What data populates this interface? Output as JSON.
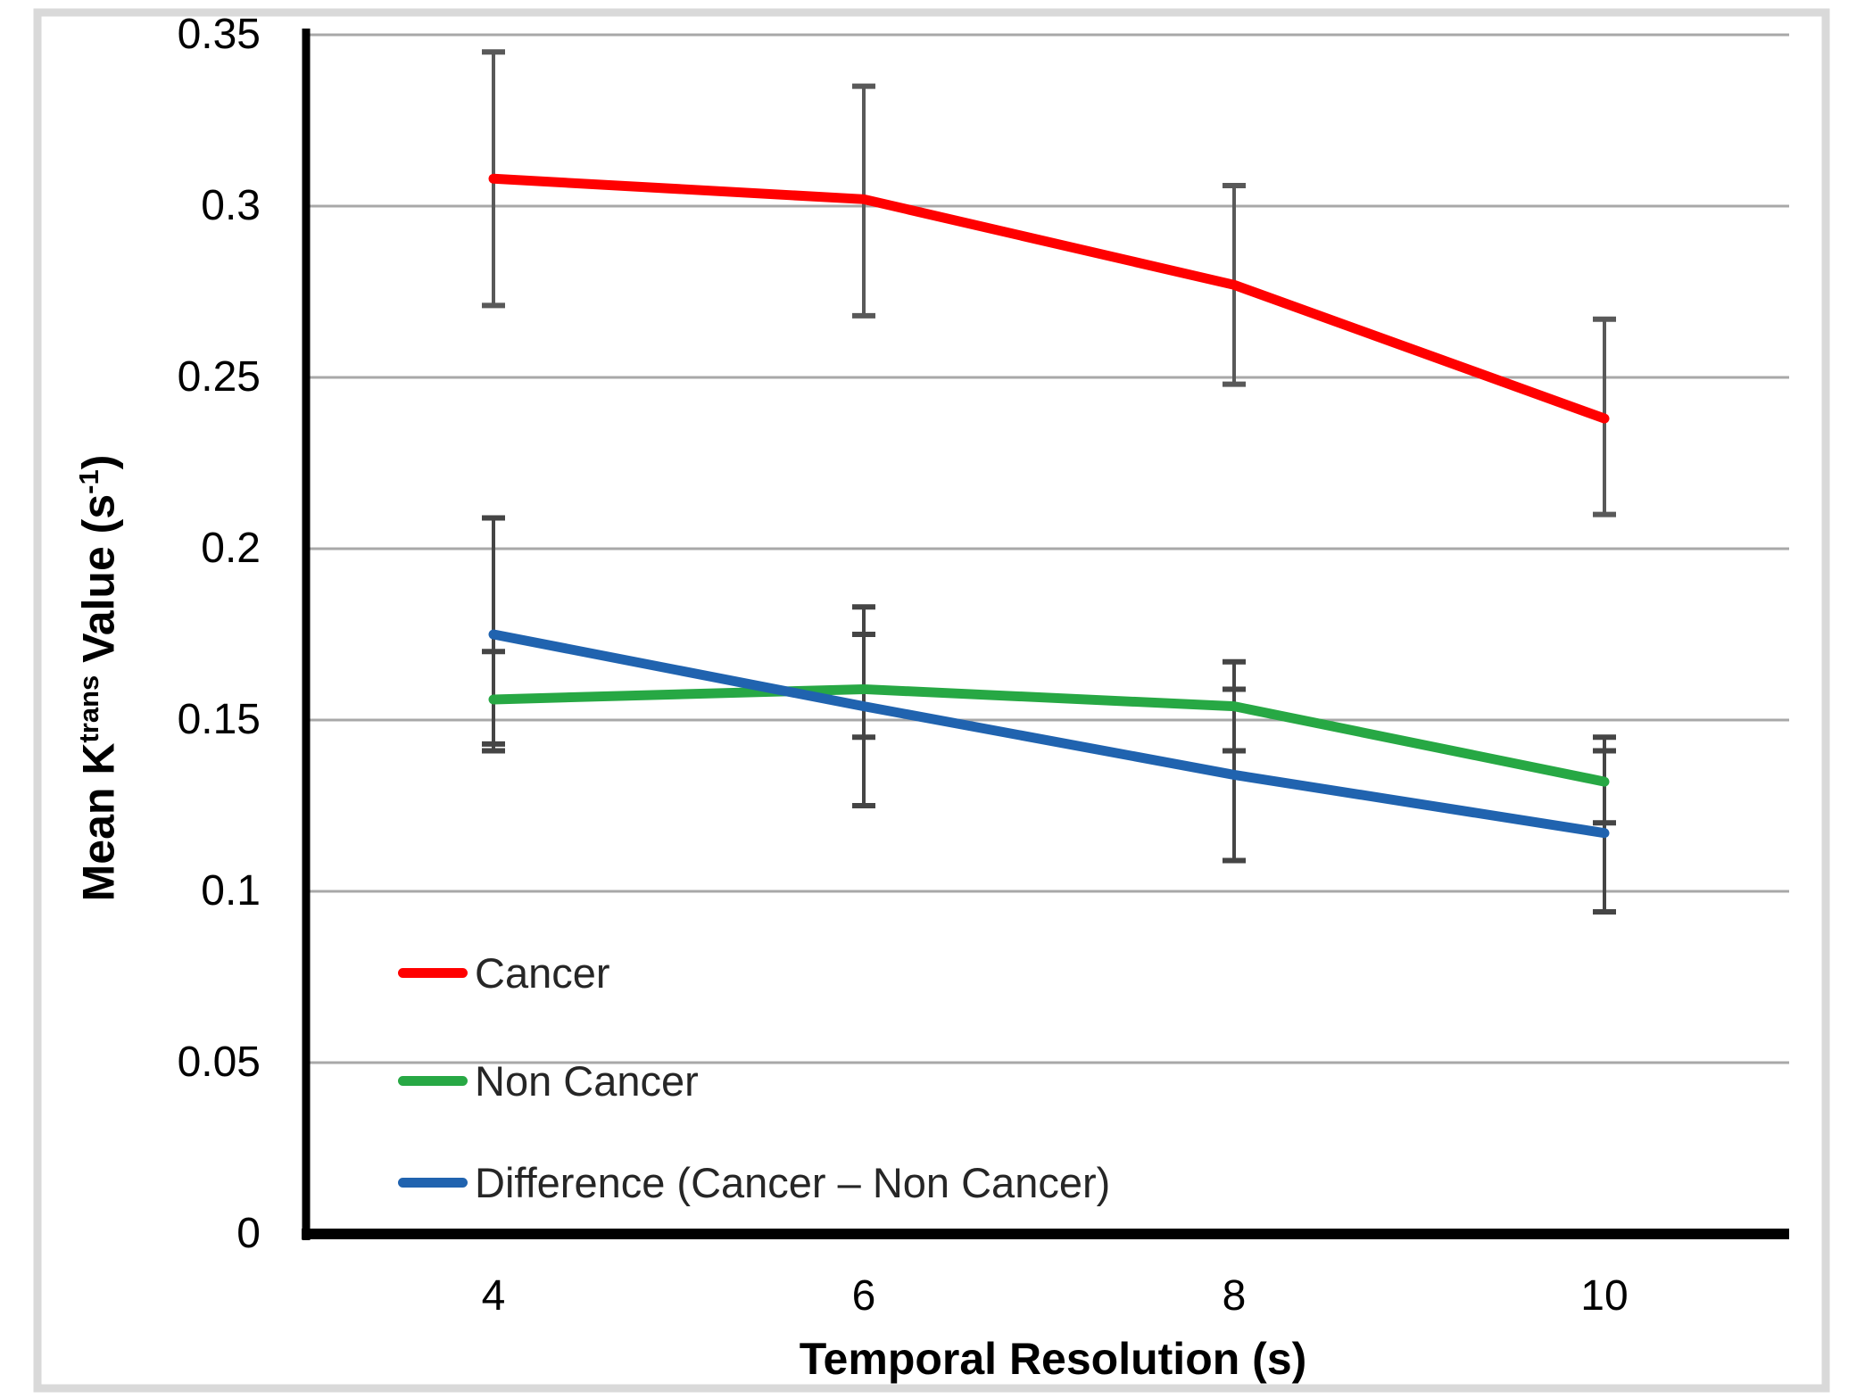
{
  "figure": {
    "background_color": "#ffffff",
    "frame_color": "#d9d9d9",
    "axis_color": "#000000",
    "gridline_color": "#a8a8a8"
  },
  "chart_data": {
    "type": "line",
    "title": "",
    "xlabel": "Temporal Resolution (s)",
    "ylabel": "Mean Ktrans Value (s-1)",
    "ylabel_parts": {
      "p1": "Mean K",
      "sup1": "trans",
      "p2": " Value (s",
      "sup2": "-1",
      "p3": ")"
    },
    "x": [
      4,
      6,
      8,
      10
    ],
    "x_tick_labels": [
      "4",
      "6",
      "8",
      "10"
    ],
    "ylim": [
      0,
      0.35
    ],
    "y_axis": {
      "tick_values": [
        0,
        0.05,
        0.1,
        0.15,
        0.2,
        0.25,
        0.3,
        0.35
      ],
      "tick_labels": [
        "0",
        "0.05",
        "0.1",
        "0.15",
        "0.2",
        "0.25",
        "0.3",
        "0.35"
      ]
    },
    "grid": "horizontal gridlines on",
    "legend_position": "inside lower-left, no border",
    "error_bars": "vertical with caps on every point",
    "series": [
      {
        "name": "Cancer",
        "color": "#ff0000",
        "errorbar_color": "#595959",
        "values": [
          0.308,
          0.302,
          0.277,
          0.238
        ],
        "error_low": [
          0.271,
          0.268,
          0.248,
          0.21
        ],
        "error_high": [
          0.345,
          0.335,
          0.306,
          0.267
        ]
      },
      {
        "name": "Non Cancer",
        "color": "#27a844",
        "errorbar_color": "#454545",
        "values": [
          0.156,
          0.159,
          0.154,
          0.132
        ],
        "error_low": [
          0.143,
          0.145,
          0.141,
          0.12
        ],
        "error_high": [
          0.17,
          0.175,
          0.167,
          0.145
        ]
      },
      {
        "name": "Difference (Cancer – Non Cancer)",
        "color": "#2063af",
        "errorbar_color": "#454545",
        "values": [
          0.175,
          0.154,
          0.134,
          0.117
        ],
        "error_low": [
          0.141,
          0.125,
          0.109,
          0.094
        ],
        "error_high": [
          0.209,
          0.183,
          0.159,
          0.141
        ]
      }
    ]
  }
}
